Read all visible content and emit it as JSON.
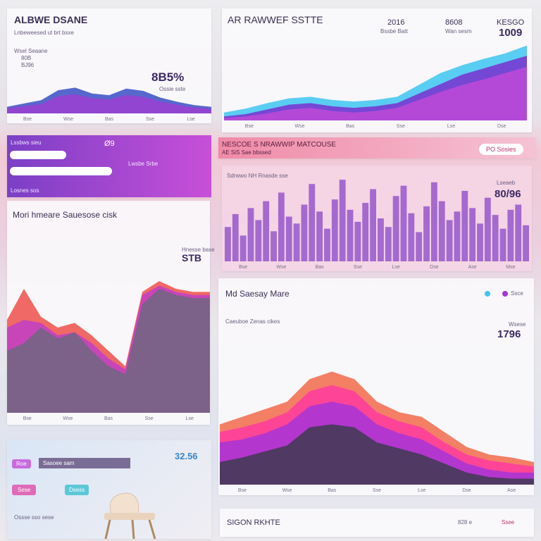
{
  "panels": [
    {
      "title": "ALBWE DSANE",
      "subtitle": "Lnbeweesed ut brt bsxe",
      "notes": [
        "Wsel Seaane",
        "80B",
        "BJ96"
      ],
      "kpi": "8B5%",
      "kpi_caption": "Ossie sste",
      "chart": {
        "type": "area",
        "ylim": [
          0,
          100
        ],
        "xlabels": [
          "Bse",
          "Wse",
          "Bas",
          "Sse",
          "Lse"
        ],
        "series": [
          {
            "color": "#3b4fc4",
            "values": [
              20,
              30,
              40,
              70,
              78,
              60,
              55,
              75,
              68,
              48,
              35,
              25,
              20
            ]
          },
          {
            "color": "#9b3fd0",
            "values": [
              15,
              22,
              28,
              52,
              58,
              46,
              42,
              56,
              50,
              36,
              26,
              18,
              14
            ]
          }
        ]
      }
    },
    {
      "title": "AR RAWWEF SSTTE",
      "notes": [
        "2016",
        "Bssbe Batt",
        "8608",
        "Wan sesm"
      ],
      "kpi": "1009",
      "kpi_caption": "KESGO",
      "chart": {
        "type": "area",
        "ylim": [
          0,
          100
        ],
        "xlabels": [
          "Bse",
          "Wse",
          "Bas",
          "Sse",
          "Lse",
          "Dse"
        ],
        "series": [
          {
            "color": "#3ec6f0",
            "values": [
              10,
              15,
              22,
              28,
              30,
              26,
              24,
              26,
              30,
              45,
              60,
              70,
              78,
              85,
              95
            ]
          },
          {
            "color": "#7a2fd0",
            "values": [
              5,
              8,
              14,
              20,
              22,
              18,
              16,
              18,
              22,
              34,
              46,
              58,
              66,
              74,
              82
            ]
          },
          {
            "color": "#c04ad8",
            "values": [
              3,
              5,
              9,
              14,
              16,
              12,
              10,
              12,
              16,
              26,
              36,
              45,
              52,
              60,
              68
            ]
          }
        ]
      }
    },
    {
      "title": "NESCOE S NRAWWIP MATCOUSE",
      "subtitle": "AE SiS Sae bbssed",
      "button": "PO Sosies",
      "chart_title": "Sdrwwo NH Rnasde sse",
      "kpi": "80/96",
      "kpi_caption": "Lseaeb",
      "chart": {
        "type": "bar",
        "ylim": [
          0,
          100
        ],
        "color": "#8a45c8",
        "xlabels": [
          "Bse",
          "Wse",
          "Bas",
          "Sse",
          "Lse",
          "Dse",
          "Ase",
          "Mse"
        ],
        "values": [
          40,
          55,
          30,
          62,
          48,
          70,
          35,
          80,
          52,
          44,
          66,
          90,
          58,
          38,
          72,
          95,
          60,
          46,
          68,
          84,
          50,
          40,
          76,
          88,
          56,
          34,
          64,
          92,
          70,
          48,
          58,
          82,
          62,
          44,
          74,
          54,
          38,
          60,
          66,
          42
        ]
      }
    },
    {
      "card_title": "Lssbws sieu",
      "card_value": "Ø9",
      "card_note": "Lwsbe Srbe",
      "card_footer": "Losnes sos"
    },
    {
      "title": "Mori hmeare Sauesose cisk",
      "kpi": "STB",
      "kpi_caption": "Hnesse base",
      "chart": {
        "type": "area",
        "ylim": [
          0,
          100
        ],
        "xlabels": [
          "Bse",
          "Wse",
          "Bas",
          "Sse",
          "Lse"
        ],
        "series": [
          {
            "color": "#f0504a",
            "values": [
              60,
              80,
              62,
              55,
              58,
              50,
              40,
              30,
              78,
              85,
              80,
              78,
              78
            ]
          },
          {
            "color": "#c040c8",
            "values": [
              55,
              60,
              58,
              50,
              52,
              45,
              35,
              28,
              76,
              82,
              78,
              76,
              76
            ]
          },
          {
            "color": "#6e6680",
            "values": [
              40,
              45,
              55,
              48,
              52,
              40,
              30,
              25,
              70,
              80,
              76,
              74,
              74
            ]
          }
        ]
      }
    },
    {
      "title": "Md Saesay Mare",
      "legend": [
        "Ssce"
      ],
      "chart_title": "Caeuboe Zenas cikes",
      "kpi": "1796",
      "kpi_caption": "Wsese",
      "chart": {
        "type": "area",
        "ylim": [
          0,
          100
        ],
        "xlabels": [
          "Bse",
          "Wse",
          "Bas",
          "Sse",
          "Lse",
          "Dse",
          "Ase"
        ],
        "series": [
          {
            "color": "#f26a4a",
            "values": [
              40,
              45,
              50,
              55,
              70,
              75,
              70,
              55,
              48,
              45,
              35,
              25,
              20,
              18,
              15
            ]
          },
          {
            "color": "#ff3aa0",
            "values": [
              35,
              38,
              42,
              48,
              62,
              66,
              62,
              48,
              42,
              38,
              28,
              20,
              16,
              14,
              12
            ]
          },
          {
            "color": "#a634d8",
            "values": [
              28,
              30,
              34,
              40,
              52,
              55,
              52,
              40,
              34,
              30,
              22,
              14,
              10,
              8,
              8
            ]
          },
          {
            "color": "#3e3a50",
            "values": [
              15,
              18,
              22,
              26,
              38,
              40,
              38,
              28,
              24,
              20,
              14,
              8,
              5,
              4,
              4
            ]
          }
        ]
      }
    },
    {
      "chips": [
        "Roe",
        "Sasoee sam",
        "Sese",
        "Dsess"
      ],
      "kpi": "32.56",
      "caption": "Ossse sso sese"
    },
    {
      "title": "SIGON RKHTE",
      "notes": [
        "828 e",
        "Ssee"
      ]
    }
  ]
}
